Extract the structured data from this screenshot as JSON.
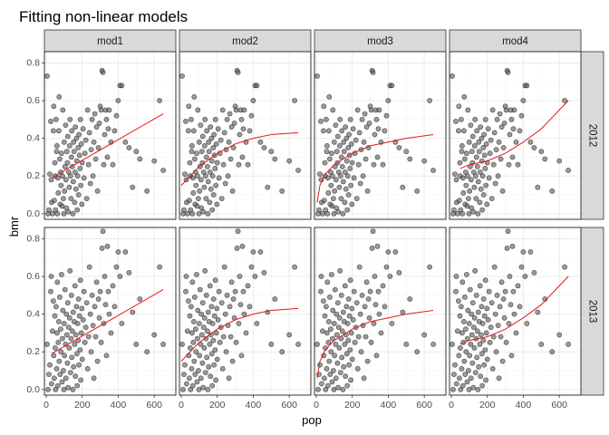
{
  "chart_data": {
    "type": "scatter",
    "title": "Fitting non-linear models",
    "xlabel": "pop",
    "ylabel": "bmr",
    "xlim": [
      -10,
      720
    ],
    "ylim": [
      -0.03,
      0.86
    ],
    "x_ticks": [
      0,
      200,
      400,
      600
    ],
    "y_ticks": [
      0.0,
      0.2,
      0.4,
      0.6,
      0.8
    ],
    "x_tick_labels": [
      "0",
      "200",
      "400",
      "600"
    ],
    "y_tick_labels": [
      "0.0",
      "0.2",
      "0.4",
      "0.6",
      "0.8"
    ],
    "grid": true,
    "facets": {
      "columns": [
        "mod1",
        "mod2",
        "mod3",
        "mod4"
      ],
      "rows": [
        "2012",
        "2013"
      ]
    },
    "colors": {
      "points": "#595959",
      "fit_line": "#e41a1c",
      "strip_fill": "#d9d9d9",
      "panel_border": "#333333",
      "grid": "#ebebeb"
    },
    "points": {
      "2012": [
        [
          5,
          0.73
        ],
        [
          10,
          0.0
        ],
        [
          15,
          0.02
        ],
        [
          20,
          0.21
        ],
        [
          25,
          0.49
        ],
        [
          28,
          0.18
        ],
        [
          30,
          0.06
        ],
        [
          35,
          0.0
        ],
        [
          40,
          0.44
        ],
        [
          42,
          0.57
        ],
        [
          45,
          0.07
        ],
        [
          48,
          0.27
        ],
        [
          50,
          0.2
        ],
        [
          52,
          0.02
        ],
        [
          55,
          0.5
        ],
        [
          58,
          0.33
        ],
        [
          60,
          0.36
        ],
        [
          62,
          0.0
        ],
        [
          65,
          0.19
        ],
        [
          67,
          0.11
        ],
        [
          70,
          0.44
        ],
        [
          72,
          0.62
        ],
        [
          75,
          0.29
        ],
        [
          77,
          0.05
        ],
        [
          80,
          0.22
        ],
        [
          82,
          0.15
        ],
        [
          85,
          0.32
        ],
        [
          88,
          0.04
        ],
        [
          90,
          0.2
        ],
        [
          92,
          0.55
        ],
        [
          95,
          0.08
        ],
        [
          98,
          0.0
        ],
        [
          100,
          0.38
        ],
        [
          102,
          0.12
        ],
        [
          105,
          0.25
        ],
        [
          108,
          0.47
        ],
        [
          110,
          0.18
        ],
        [
          112,
          0.03
        ],
        [
          115,
          0.33
        ],
        [
          118,
          0.27
        ],
        [
          120,
          0.41
        ],
        [
          122,
          0.01
        ],
        [
          125,
          0.22
        ],
        [
          128,
          0.14
        ],
        [
          130,
          0.36
        ],
        [
          132,
          0.5
        ],
        [
          135,
          0.2
        ],
        [
          138,
          0.08
        ],
        [
          140,
          0.3
        ],
        [
          142,
          0.44
        ],
        [
          145,
          0.25
        ],
        [
          148,
          0.0
        ],
        [
          150,
          0.17
        ],
        [
          152,
          0.38
        ],
        [
          155,
          0.33
        ],
        [
          158,
          0.06
        ],
        [
          160,
          0.22
        ],
        [
          162,
          0.46
        ],
        [
          165,
          0.13
        ],
        [
          168,
          0.4
        ],
        [
          170,
          0.28
        ],
        [
          172,
          0.02
        ],
        [
          175,
          0.2
        ],
        [
          178,
          0.35
        ],
        [
          180,
          0.1
        ],
        [
          182,
          0.42
        ],
        [
          185,
          0.31
        ],
        [
          188,
          0.24
        ],
        [
          190,
          0.5
        ],
        [
          192,
          0.15
        ],
        [
          195,
          0.37
        ],
        [
          198,
          0.05
        ],
        [
          200,
          0.27
        ],
        [
          205,
          0.45
        ],
        [
          210,
          0.19
        ],
        [
          215,
          0.32
        ],
        [
          220,
          0.39
        ],
        [
          225,
          0.08
        ],
        [
          230,
          0.55
        ],
        [
          235,
          0.26
        ],
        [
          240,
          0.43
        ],
        [
          245,
          0.16
        ],
        [
          250,
          0.34
        ],
        [
          255,
          0.5
        ],
        [
          260,
          0.2
        ],
        [
          265,
          0.38
        ],
        [
          270,
          0.53
        ],
        [
          275,
          0.29
        ],
        [
          280,
          0.46
        ],
        [
          285,
          0.12
        ],
        [
          290,
          0.35
        ],
        [
          295,
          0.48
        ],
        [
          300,
          0.57
        ],
        [
          305,
          0.55
        ],
        [
          310,
          0.76
        ],
        [
          315,
          0.75
        ],
        [
          320,
          0.26
        ],
        [
          325,
          0.42
        ],
        [
          330,
          0.55
        ],
        [
          335,
          0.5
        ],
        [
          340,
          0.3
        ],
        [
          345,
          0.45
        ],
        [
          350,
          0.55
        ],
        [
          360,
          0.38
        ],
        [
          370,
          0.26
        ],
        [
          380,
          0.44
        ],
        [
          390,
          0.52
        ],
        [
          400,
          0.6
        ],
        [
          410,
          0.68
        ],
        [
          420,
          0.68
        ],
        [
          440,
          0.38
        ],
        [
          460,
          0.35
        ],
        [
          480,
          0.14
        ],
        [
          500,
          0.33
        ],
        [
          520,
          0.29
        ],
        [
          560,
          0.12
        ],
        [
          600,
          0.28
        ],
        [
          630,
          0.6
        ],
        [
          650,
          0.23
        ]
      ],
      "2013": [
        [
          5,
          0.24
        ],
        [
          10,
          0.0
        ],
        [
          15,
          0.08
        ],
        [
          20,
          0.13
        ],
        [
          25,
          0.52
        ],
        [
          28,
          0.6
        ],
        [
          30,
          0.03
        ],
        [
          35,
          0.31
        ],
        [
          40,
          0.47
        ],
        [
          42,
          0.18
        ],
        [
          45,
          0.06
        ],
        [
          48,
          0.39
        ],
        [
          50,
          0.22
        ],
        [
          52,
          0.0
        ],
        [
          55,
          0.44
        ],
        [
          58,
          0.11
        ],
        [
          60,
          0.3
        ],
        [
          62,
          0.57
        ],
        [
          65,
          0.02
        ],
        [
          67,
          0.25
        ],
        [
          70,
          0.36
        ],
        [
          72,
          0.15
        ],
        [
          75,
          0.49
        ],
        [
          77,
          0.08
        ],
        [
          80,
          0.32
        ],
        [
          82,
          0.2
        ],
        [
          85,
          0.61
        ],
        [
          88,
          0.04
        ],
        [
          90,
          0.27
        ],
        [
          92,
          0.42
        ],
        [
          95,
          0.1
        ],
        [
          98,
          0.0
        ],
        [
          100,
          0.35
        ],
        [
          102,
          0.18
        ],
        [
          105,
          0.53
        ],
        [
          108,
          0.24
        ],
        [
          110,
          0.06
        ],
        [
          112,
          0.4
        ],
        [
          115,
          0.29
        ],
        [
          118,
          0.14
        ],
        [
          120,
          0.46
        ],
        [
          122,
          0.01
        ],
        [
          125,
          0.33
        ],
        [
          128,
          0.22
        ],
        [
          130,
          0.38
        ],
        [
          132,
          0.63
        ],
        [
          135,
          0.09
        ],
        [
          138,
          0.27
        ],
        [
          140,
          0.5
        ],
        [
          142,
          0.17
        ],
        [
          145,
          0.31
        ],
        [
          148,
          0.0
        ],
        [
          150,
          0.41
        ],
        [
          152,
          0.12
        ],
        [
          155,
          0.36
        ],
        [
          158,
          0.24
        ],
        [
          160,
          0.55
        ],
        [
          162,
          0.07
        ],
        [
          165,
          0.29
        ],
        [
          168,
          0.44
        ],
        [
          170,
          0.19
        ],
        [
          172,
          0.02
        ],
        [
          175,
          0.35
        ],
        [
          178,
          0.26
        ],
        [
          180,
          0.48
        ],
        [
          182,
          0.13
        ],
        [
          185,
          0.39
        ],
        [
          188,
          0.21
        ],
        [
          190,
          0.58
        ],
        [
          192,
          0.05
        ],
        [
          195,
          0.3
        ],
        [
          198,
          0.43
        ],
        [
          200,
          0.16
        ],
        [
          205,
          0.37
        ],
        [
          210,
          0.52
        ],
        [
          215,
          0.25
        ],
        [
          220,
          0.33
        ],
        [
          225,
          0.46
        ],
        [
          230,
          0.11
        ],
        [
          235,
          0.28
        ],
        [
          240,
          0.65
        ],
        [
          245,
          0.4
        ],
        [
          250,
          0.2
        ],
        [
          255,
          0.5
        ],
        [
          260,
          0.34
        ],
        [
          265,
          0.06
        ],
        [
          270,
          0.44
        ],
        [
          275,
          0.28
        ],
        [
          280,
          0.57
        ],
        [
          285,
          0.15
        ],
        [
          290,
          0.48
        ],
        [
          295,
          0.38
        ],
        [
          300,
          0.52
        ],
        [
          305,
          0.25
        ],
        [
          310,
          0.75
        ],
        [
          315,
          0.84
        ],
        [
          320,
          0.35
        ],
        [
          325,
          0.6
        ],
        [
          330,
          0.45
        ],
        [
          335,
          0.18
        ],
        [
          340,
          0.76
        ],
        [
          345,
          0.52
        ],
        [
          350,
          0.4
        ],
        [
          360,
          0.3
        ],
        [
          370,
          0.55
        ],
        [
          380,
          0.44
        ],
        [
          390,
          0.65
        ],
        [
          400,
          0.73
        ],
        [
          410,
          0.6
        ],
        [
          420,
          0.35
        ],
        [
          440,
          0.73
        ],
        [
          460,
          0.62
        ],
        [
          480,
          0.41
        ],
        [
          500,
          0.24
        ],
        [
          520,
          0.48
        ],
        [
          560,
          0.2
        ],
        [
          600,
          0.29
        ],
        [
          630,
          0.65
        ],
        [
          650,
          0.24
        ]
      ]
    },
    "fits": {
      "mod1": [
        [
          30,
          0.19
        ],
        [
          650,
          0.53
        ]
      ],
      "mod2": [
        [
          0,
          0.15
        ],
        [
          100,
          0.25
        ],
        [
          200,
          0.32
        ],
        [
          300,
          0.37
        ],
        [
          400,
          0.4
        ],
        [
          500,
          0.42
        ],
        [
          650,
          0.43
        ]
      ],
      "mod3": [
        [
          5,
          0.06
        ],
        [
          20,
          0.15
        ],
        [
          50,
          0.21
        ],
        [
          100,
          0.26
        ],
        [
          200,
          0.32
        ],
        [
          300,
          0.36
        ],
        [
          400,
          0.38
        ],
        [
          500,
          0.4
        ],
        [
          650,
          0.42
        ]
      ],
      "mod4": [
        [
          50,
          0.24
        ],
        [
          100,
          0.26
        ],
        [
          200,
          0.28
        ],
        [
          300,
          0.32
        ],
        [
          400,
          0.38
        ],
        [
          500,
          0.45
        ],
        [
          600,
          0.55
        ],
        [
          650,
          0.6
        ]
      ]
    }
  }
}
